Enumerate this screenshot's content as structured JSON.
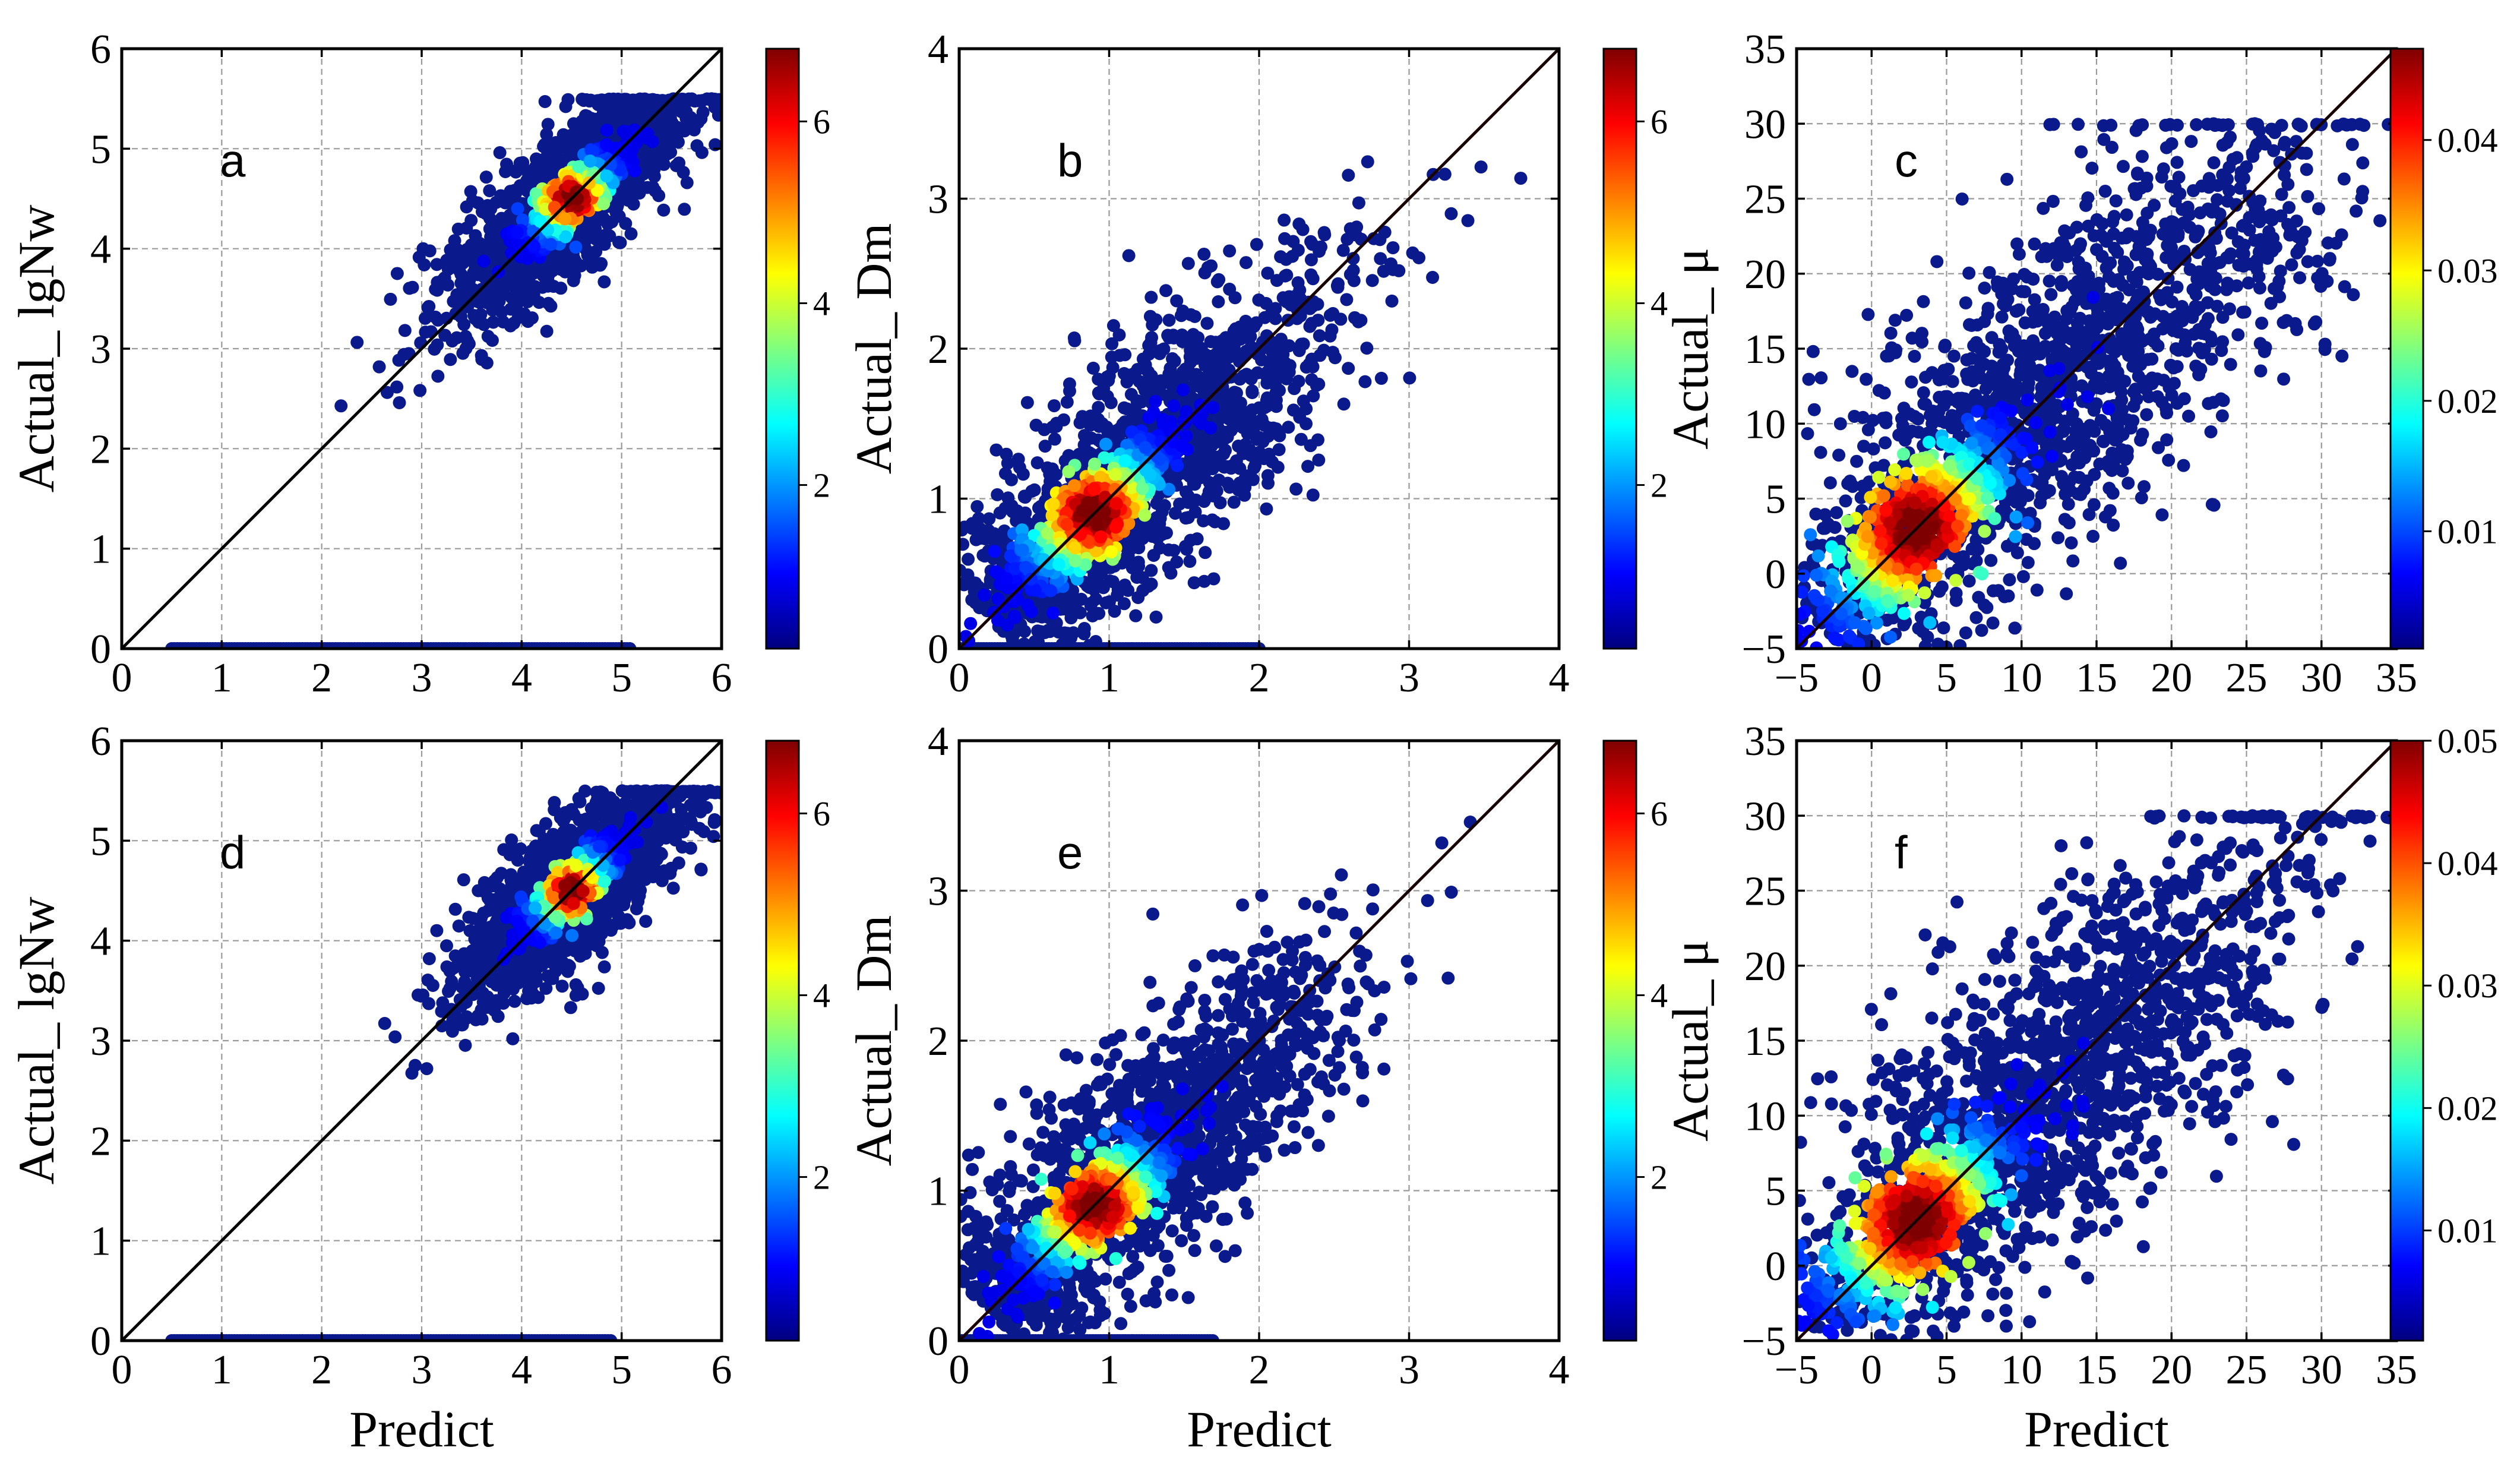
{
  "figure": {
    "colormap": "jet",
    "colormap_stops": [
      "#00007f",
      "#0000ff",
      "#007fff",
      "#00ffff",
      "#7fff7f",
      "#ffff00",
      "#ff7f00",
      "#ff0000",
      "#7f0000"
    ],
    "grid_color": "#9a9a9a",
    "point_color": "#0a1a8c",
    "identity_line_color": "#000000",
    "fit_line_color": "#cc0000"
  },
  "chart_data": [
    {
      "id": "a",
      "type": "scatter",
      "panel_label": "a",
      "xlabel": "",
      "ylabel": "Actual_ lgNw",
      "xlim": [
        0,
        6
      ],
      "ylim": [
        0,
        6
      ],
      "xticks": [
        "0",
        "1",
        "2",
        "3",
        "4",
        "5",
        "6"
      ],
      "yticks": [
        "0",
        "1",
        "2",
        "3",
        "4",
        "5",
        "6"
      ],
      "cloud_center": [
        4.5,
        4.5
      ],
      "cloud_spread": [
        0.55,
        0.5
      ],
      "cloud_range": [
        1.5,
        5.5
      ],
      "zero_band": [
        0.5,
        5.1
      ],
      "density_peak": [
        4.5,
        4.5
      ],
      "colorbar": {
        "min": 0.2,
        "max": 6.8,
        "ticks": [
          "2",
          "4",
          "6"
        ],
        "tick_values": [
          2,
          4,
          6
        ]
      },
      "identity_line": true,
      "fit_line": false
    },
    {
      "id": "b",
      "type": "scatter",
      "panel_label": "b",
      "xlabel": "",
      "ylabel": "Actual_ Dm",
      "xlim": [
        0,
        4
      ],
      "ylim": [
        0,
        4
      ],
      "xticks": [
        "0",
        "1",
        "2",
        "3",
        "4"
      ],
      "yticks": [
        "0",
        "1",
        "2",
        "3",
        "4"
      ],
      "cloud_center": [
        1.2,
        1.2
      ],
      "cloud_spread": [
        0.6,
        0.55
      ],
      "cloud_range": [
        0.2,
        4
      ],
      "zero_band": [
        0.0,
        2.0
      ],
      "density_peak": [
        0.9,
        0.9
      ],
      "colorbar": {
        "min": 0.2,
        "max": 6.8,
        "ticks": [
          "2",
          "4",
          "6"
        ],
        "tick_values": [
          2,
          4,
          6
        ]
      },
      "identity_line": true,
      "fit_line": true
    },
    {
      "id": "c",
      "type": "scatter",
      "panel_label": "c",
      "xlabel": "",
      "ylabel": "Actual_ μ",
      "xlim": [
        -5,
        35
      ],
      "ylim": [
        -5,
        35
      ],
      "xticks": [
        "−5",
        "0",
        "5",
        "10",
        "15",
        "20",
        "25",
        "30",
        "35"
      ],
      "yticks": [
        "−5",
        "0",
        "5",
        "10",
        "15",
        "20",
        "25",
        "30",
        "35"
      ],
      "cloud_center": [
        12,
        12
      ],
      "cloud_spread": [
        8,
        8
      ],
      "cloud_range": [
        -4,
        30
      ],
      "zero_band": null,
      "density_peak": [
        3,
        3
      ],
      "colorbar": {
        "min": 0.001,
        "max": 0.047,
        "ticks": [
          "0.01",
          "0.02",
          "0.03",
          "0.04"
        ],
        "tick_values": [
          0.01,
          0.02,
          0.03,
          0.04
        ]
      },
      "identity_line": true,
      "fit_line": true
    },
    {
      "id": "d",
      "type": "scatter",
      "panel_label": "d",
      "xlabel": "Predict",
      "ylabel": "Actual_ lgNw",
      "xlim": [
        0,
        6
      ],
      "ylim": [
        0,
        6
      ],
      "xticks": [
        "0",
        "1",
        "2",
        "3",
        "4",
        "5",
        "6"
      ],
      "yticks": [
        "0",
        "1",
        "2",
        "3",
        "4",
        "5",
        "6"
      ],
      "cloud_center": [
        4.5,
        4.5
      ],
      "cloud_spread": [
        0.5,
        0.5
      ],
      "cloud_range": [
        1.5,
        5.5
      ],
      "zero_band": [
        0.5,
        4.9
      ],
      "density_peak": [
        4.5,
        4.5
      ],
      "colorbar": {
        "min": 0.2,
        "max": 6.8,
        "ticks": [
          "2",
          "4",
          "6"
        ],
        "tick_values": [
          2,
          4,
          6
        ]
      },
      "identity_line": true,
      "fit_line": false
    },
    {
      "id": "e",
      "type": "scatter",
      "panel_label": "e",
      "xlabel": "Predict",
      "ylabel": "Actual_ Dm",
      "xlim": [
        0,
        4
      ],
      "ylim": [
        0,
        4
      ],
      "xticks": [
        "0",
        "1",
        "2",
        "3",
        "4"
      ],
      "yticks": [
        "0",
        "1",
        "2",
        "3",
        "4"
      ],
      "cloud_center": [
        1.2,
        1.2
      ],
      "cloud_spread": [
        0.6,
        0.55
      ],
      "cloud_range": [
        0.2,
        4
      ],
      "zero_band": [
        0.0,
        1.7
      ],
      "density_peak": [
        0.9,
        0.9
      ],
      "colorbar": {
        "min": 0.2,
        "max": 6.8,
        "ticks": [
          "2",
          "4",
          "6"
        ],
        "tick_values": [
          2,
          4,
          6
        ]
      },
      "identity_line": true,
      "fit_line": true
    },
    {
      "id": "f",
      "type": "scatter",
      "panel_label": "f",
      "xlabel": "Predict",
      "ylabel": "Actual_ μ",
      "xlim": [
        -5,
        35
      ],
      "ylim": [
        -5,
        35
      ],
      "xticks": [
        "−5",
        "0",
        "5",
        "10",
        "15",
        "20",
        "25",
        "30",
        "35"
      ],
      "yticks": [
        "−5",
        "0",
        "5",
        "10",
        "15",
        "20",
        "25",
        "30",
        "35"
      ],
      "cloud_center": [
        12,
        12
      ],
      "cloud_spread": [
        8,
        8
      ],
      "cloud_range": [
        -4,
        30
      ],
      "zero_band": null,
      "density_peak": [
        3,
        3
      ],
      "colorbar": {
        "min": 0.001,
        "max": 0.05,
        "ticks": [
          "0.01",
          "0.02",
          "0.03",
          "0.04",
          "0.05"
        ],
        "tick_values": [
          0.01,
          0.02,
          0.03,
          0.04,
          0.05
        ]
      },
      "identity_line": true,
      "fit_line": true
    }
  ]
}
